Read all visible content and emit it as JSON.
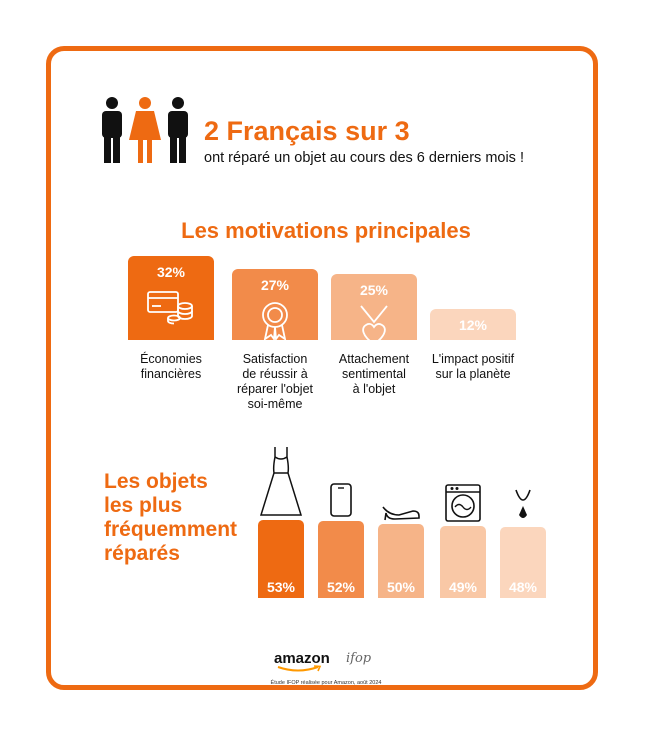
{
  "headline": {
    "title": "2 Français sur 3",
    "subtitle": "ont réparé un objet au cours des 6 derniers mois !"
  },
  "colors": {
    "accent": "#ee6a12",
    "shades": [
      "#ee6a12",
      "#f28b4a",
      "#f6b488",
      "#fbd6bd"
    ]
  },
  "chart_data": [
    {
      "type": "bar",
      "title": "Les motivations principales",
      "categories": [
        "Économies financières",
        "Satisfaction de réussir à réparer l'objet soi-même",
        "Attachement sentimental à l'objet",
        "L'impact positif sur la planète"
      ],
      "labels": [
        [
          "Économies",
          "financières"
        ],
        [
          "Satisfaction",
          "de réussir à",
          "réparer l'objet",
          "soi-même"
        ],
        [
          "Attachement",
          "sentimental",
          "à l'objet"
        ],
        [
          "L'impact positif",
          "sur la planète"
        ]
      ],
      "values": [
        32,
        27,
        25,
        12
      ],
      "value_labels": [
        "32%",
        "27%",
        "25%",
        "12%"
      ],
      "icons": [
        "money-icon",
        "medal-icon",
        "heart-pendant-icon",
        ""
      ],
      "unit": "%"
    },
    {
      "type": "bar",
      "title_lines": [
        "Les objets",
        "les plus",
        "fréquemment",
        "réparés"
      ],
      "categories": [
        "dress",
        "smartphone",
        "shoe",
        "washing-machine",
        "necklace"
      ],
      "icons": [
        "dress-icon",
        "smartphone-icon",
        "shoe-icon",
        "washing-machine-icon",
        "necklace-icon"
      ],
      "values": [
        53,
        52,
        50,
        49,
        48
      ],
      "value_labels": [
        "53%",
        "52%",
        "50%",
        "49%",
        "48%"
      ],
      "unit": "%"
    }
  ],
  "footer": {
    "brand": "amazon",
    "partner": "ifop",
    "credit": "Étude IFOP réalisée pour Amazon, août 2024"
  }
}
